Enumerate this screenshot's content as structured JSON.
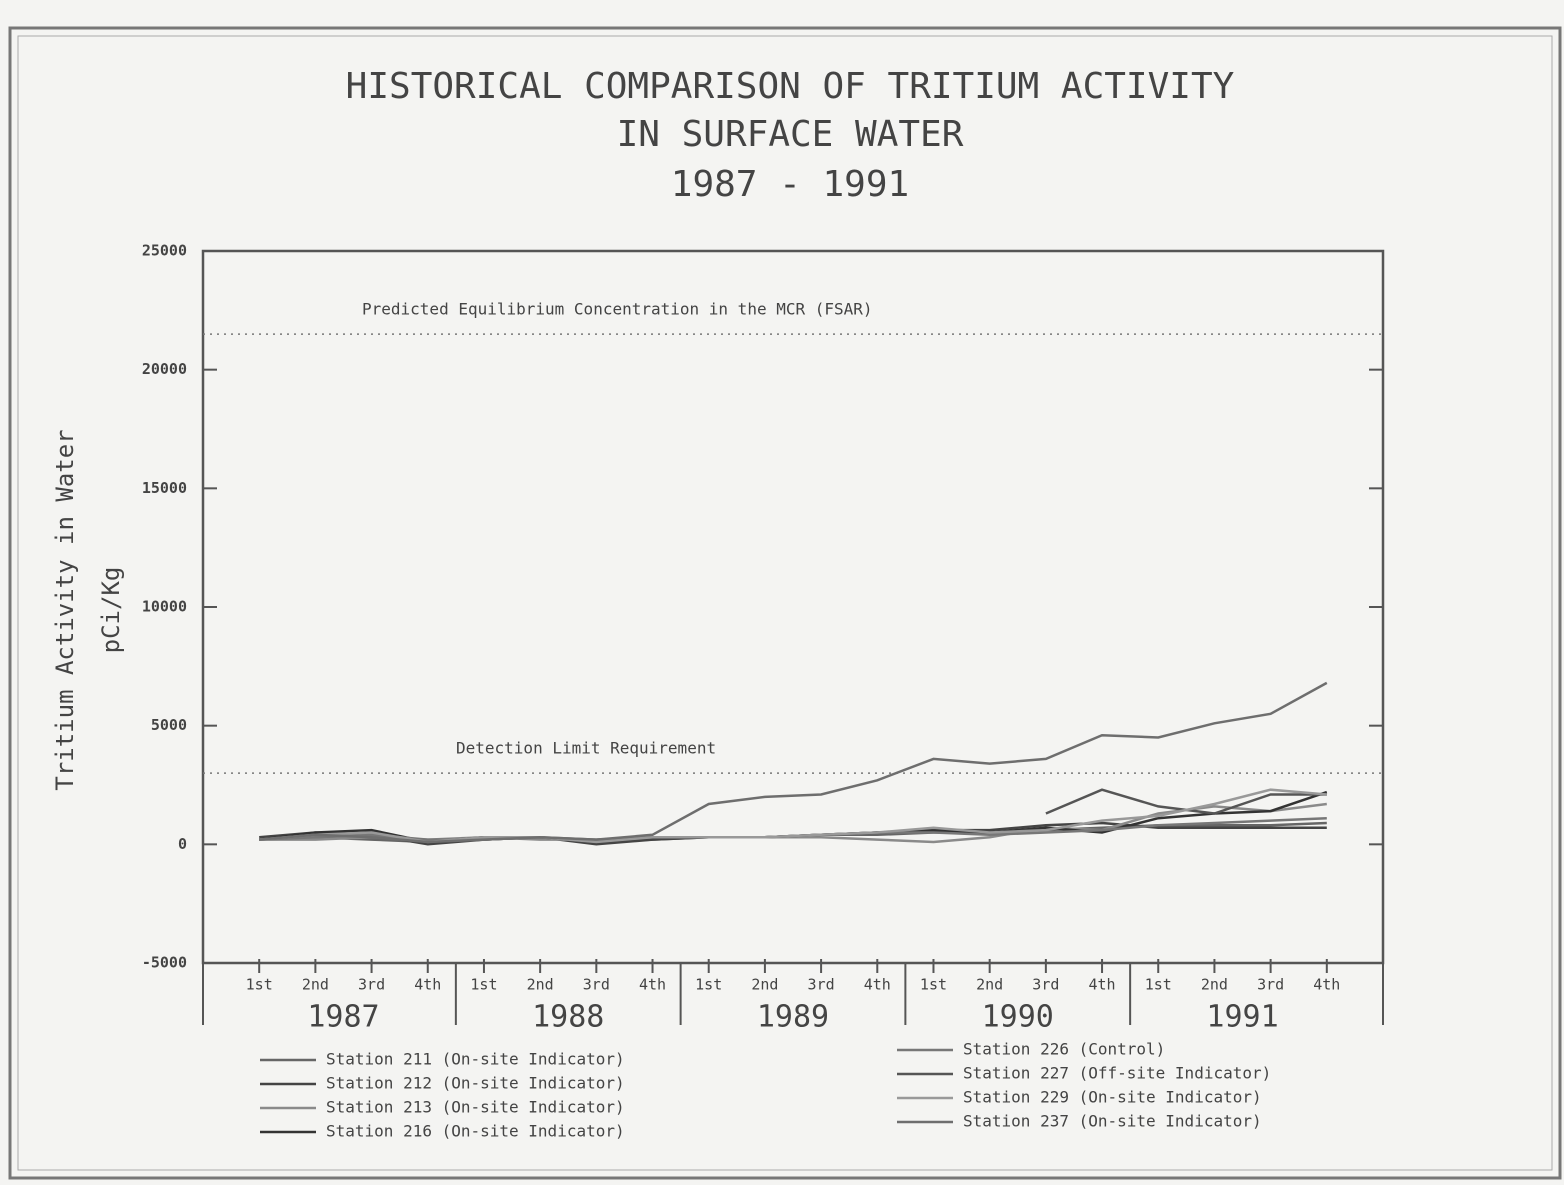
{
  "chart_data": {
    "type": "line",
    "title": [
      "HISTORICAL COMPARISON OF TRITIUM ACTIVITY",
      "IN SURFACE WATER",
      "1987 - 1991"
    ],
    "ylabel": [
      "Tritium Activity in Water",
      "pCi/Kg"
    ],
    "categories": [
      "1st",
      "2nd",
      "3rd",
      "4th",
      "1st",
      "2nd",
      "3rd",
      "4th",
      "1st",
      "2nd",
      "3rd",
      "4th",
      "1st",
      "2nd",
      "3rd",
      "4th",
      "1st",
      "2nd",
      "3rd",
      "4th"
    ],
    "year_groups": [
      "1987",
      "1988",
      "1989",
      "1990",
      "1991"
    ],
    "ylim": [
      -5000,
      25000
    ],
    "yticks": [
      -5000,
      0,
      5000,
      10000,
      15000,
      20000,
      25000
    ],
    "reference_lines": [
      {
        "value": 21500,
        "label": "Predicted Equilibrium Concentration in the MCR (FSAR)"
      },
      {
        "value": 3000,
        "label": "Detection Limit Requirement"
      }
    ],
    "series": [
      {
        "name": "Station 211 (On-site Indicator)",
        "color": "#666666",
        "values": [
          200,
          300,
          200,
          100,
          200,
          300,
          100,
          200,
          300,
          300,
          400,
          400,
          500,
          500,
          600,
          700,
          800,
          800,
          800,
          900
        ]
      },
      {
        "name": "Station 212 (On-site Indicator)",
        "color": "#444444",
        "values": [
          300,
          500,
          400,
          0,
          200,
          300,
          0,
          200,
          300,
          300,
          400,
          500,
          600,
          600,
          800,
          900,
          700,
          700,
          700,
          700
        ]
      },
      {
        "name": "Station 213 (On-site Indicator)",
        "color": "#8a8a8a",
        "values": [
          200,
          200,
          300,
          200,
          300,
          200,
          200,
          300,
          300,
          300,
          300,
          200,
          100,
          300,
          700,
          600,
          1300,
          1600,
          1400,
          1700
        ]
      },
      {
        "name": "Station 216 (On-site Indicator)",
        "color": "#333333",
        "values": [
          200,
          500,
          600,
          100,
          300,
          300,
          100,
          300,
          300,
          300,
          400,
          500,
          600,
          500,
          700,
          500,
          1100,
          1300,
          1400,
          2200
        ]
      },
      {
        "name": "Station 226 (Control)",
        "color": "#777777",
        "values": [
          200,
          300,
          400,
          200,
          200,
          300,
          200,
          300,
          300,
          300,
          400,
          500,
          500,
          400,
          500,
          600,
          800,
          900,
          1000,
          1100
        ]
      },
      {
        "name": "Station 227 (Off-site Indicator)",
        "color": "#555555",
        "values": [
          null,
          null,
          null,
          null,
          null,
          null,
          null,
          null,
          null,
          null,
          null,
          null,
          null,
          null,
          1300,
          2300,
          1600,
          1300,
          2100,
          2100
        ]
      },
      {
        "name": "Station 229 (On-site Indicator)",
        "color": "#999999",
        "values": [
          200,
          400,
          500,
          100,
          300,
          300,
          100,
          300,
          300,
          300,
          400,
          500,
          700,
          500,
          600,
          1000,
          1200,
          1700,
          2300,
          2100
        ]
      },
      {
        "name": "Station 237 (On-site Indicator)",
        "color": "#6e6e6e",
        "values": [
          200,
          400,
          300,
          100,
          200,
          300,
          200,
          400,
          1700,
          2000,
          2100,
          2700,
          3600,
          3400,
          3600,
          4600,
          4500,
          5100,
          5500,
          6800
        ]
      }
    ]
  }
}
